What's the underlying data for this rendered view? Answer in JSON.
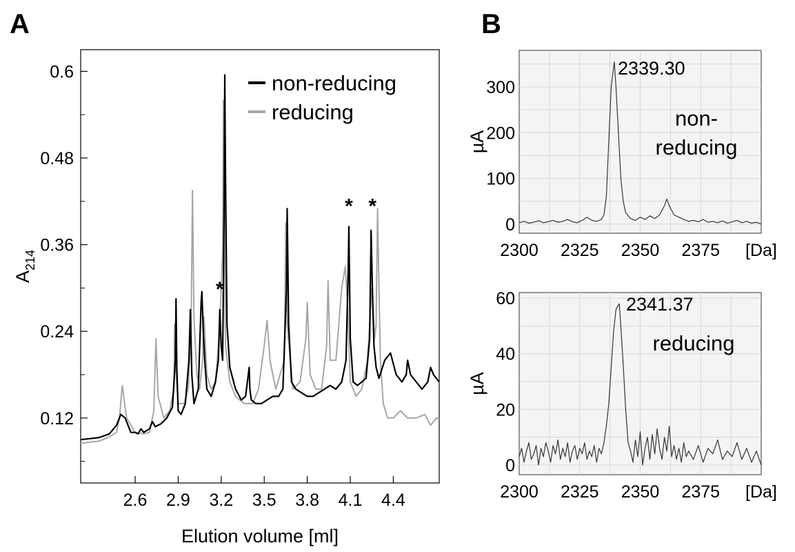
{
  "panels": {
    "A": {
      "letter": "A"
    },
    "B": {
      "letter": "B"
    }
  },
  "chart_data": [
    {
      "id": "chromatogram",
      "type": "line",
      "title": "",
      "xlabel": "Elution volume [ml]",
      "ylabel_main": "A",
      "ylabel_sub": "214",
      "xlim": [
        2.22,
        4.72
      ],
      "ylim": [
        0.03,
        0.63
      ],
      "xticks": [
        2.6,
        2.9,
        3.2,
        3.5,
        3.8,
        4.1,
        4.4
      ],
      "xtick_labels": [
        "2.6",
        "2.9",
        "3.2",
        "3.5",
        "3.8",
        "4.1",
        "4.4"
      ],
      "yticks": [
        0.12,
        0.24,
        0.36,
        0.48,
        0.6
      ],
      "ytick_labels": [
        "0.12",
        "0.24",
        "0.36",
        "0.48",
        "0.6"
      ],
      "grid": false,
      "legend_position": "top-right",
      "series": [
        {
          "name": "non-reducing",
          "color": "#000000",
          "x": [
            2.22,
            2.35,
            2.42,
            2.47,
            2.5,
            2.53,
            2.57,
            2.6,
            2.62,
            2.64,
            2.66,
            2.7,
            2.72,
            2.74,
            2.78,
            2.82,
            2.86,
            2.88,
            2.885,
            2.89,
            2.9,
            2.92,
            2.95,
            2.975,
            2.985,
            2.995,
            3.01,
            3.04,
            3.06,
            3.065,
            3.075,
            3.085,
            3.1,
            3.13,
            3.16,
            3.18,
            3.19,
            3.2,
            3.21,
            3.22,
            3.225,
            3.23,
            3.24,
            3.26,
            3.3,
            3.34,
            3.37,
            3.395,
            3.4,
            3.41,
            3.44,
            3.48,
            3.52,
            3.56,
            3.6,
            3.63,
            3.655,
            3.66,
            3.67,
            3.69,
            3.72,
            3.76,
            3.8,
            3.84,
            3.88,
            3.92,
            3.96,
            4.0,
            4.04,
            4.07,
            4.085,
            4.09,
            4.1,
            4.12,
            4.15,
            4.18,
            4.21,
            4.235,
            4.245,
            4.255,
            4.265,
            4.28,
            4.3,
            4.34,
            4.38,
            4.42,
            4.46,
            4.49,
            4.5,
            4.52,
            4.56,
            4.6,
            4.64,
            4.66,
            4.68,
            4.72
          ],
          "y": [
            0.09,
            0.093,
            0.098,
            0.11,
            0.125,
            0.12,
            0.1,
            0.1,
            0.098,
            0.105,
            0.1,
            0.105,
            0.115,
            0.108,
            0.112,
            0.12,
            0.135,
            0.2,
            0.285,
            0.19,
            0.13,
            0.125,
            0.14,
            0.2,
            0.27,
            0.18,
            0.14,
            0.16,
            0.28,
            0.295,
            0.24,
            0.2,
            0.16,
            0.15,
            0.17,
            0.2,
            0.27,
            0.22,
            0.2,
            0.4,
            0.595,
            0.45,
            0.25,
            0.19,
            0.16,
            0.145,
            0.15,
            0.19,
            0.16,
            0.145,
            0.14,
            0.14,
            0.145,
            0.15,
            0.15,
            0.16,
            0.3,
            0.41,
            0.25,
            0.17,
            0.16,
            0.155,
            0.15,
            0.15,
            0.155,
            0.16,
            0.165,
            0.16,
            0.17,
            0.2,
            0.32,
            0.385,
            0.23,
            0.17,
            0.165,
            0.17,
            0.175,
            0.23,
            0.38,
            0.29,
            0.22,
            0.19,
            0.175,
            0.2,
            0.21,
            0.18,
            0.17,
            0.18,
            0.2,
            0.18,
            0.17,
            0.16,
            0.17,
            0.19,
            0.18,
            0.17
          ]
        },
        {
          "name": "reducing",
          "color": "#a6a6a6",
          "x": [
            2.22,
            2.35,
            2.42,
            2.47,
            2.49,
            2.51,
            2.54,
            2.6,
            2.66,
            2.7,
            2.73,
            2.745,
            2.76,
            2.8,
            2.84,
            2.87,
            2.875,
            2.88,
            2.9,
            2.94,
            2.97,
            2.99,
            3.0,
            3.01,
            3.03,
            3.05,
            3.07,
            3.08,
            3.1,
            3.13,
            3.16,
            3.18,
            3.19,
            3.2,
            3.21,
            3.215,
            3.22,
            3.23,
            3.26,
            3.3,
            3.36,
            3.42,
            3.46,
            3.5,
            3.52,
            3.54,
            3.58,
            3.64,
            3.65,
            3.66,
            3.7,
            3.75,
            3.79,
            3.8,
            3.82,
            3.86,
            3.9,
            3.935,
            3.945,
            3.96,
            4.0,
            4.04,
            4.065,
            4.08,
            4.1,
            4.14,
            4.18,
            4.22,
            4.25,
            4.27,
            4.28,
            4.29,
            4.3,
            4.31,
            4.33,
            4.36,
            4.4,
            4.45,
            4.5,
            4.56,
            4.62,
            4.66,
            4.7,
            4.72
          ],
          "y": [
            0.085,
            0.088,
            0.094,
            0.1,
            0.12,
            0.165,
            0.12,
            0.1,
            0.098,
            0.1,
            0.13,
            0.23,
            0.15,
            0.12,
            0.13,
            0.16,
            0.25,
            0.2,
            0.14,
            0.14,
            0.16,
            0.25,
            0.435,
            0.26,
            0.18,
            0.16,
            0.2,
            0.26,
            0.18,
            0.16,
            0.17,
            0.22,
            0.25,
            0.3,
            0.35,
            0.56,
            0.45,
            0.22,
            0.17,
            0.15,
            0.14,
            0.14,
            0.16,
            0.22,
            0.255,
            0.2,
            0.16,
            0.2,
            0.39,
            0.25,
            0.16,
            0.17,
            0.23,
            0.28,
            0.18,
            0.16,
            0.16,
            0.22,
            0.31,
            0.2,
            0.2,
            0.3,
            0.33,
            0.28,
            0.17,
            0.15,
            0.16,
            0.2,
            0.3,
            0.23,
            0.25,
            0.41,
            0.3,
            0.2,
            0.14,
            0.12,
            0.12,
            0.13,
            0.12,
            0.12,
            0.125,
            0.11,
            0.12,
            0.118
          ]
        }
      ],
      "annotations": [
        {
          "text": "*",
          "x": 3.19,
          "y": 0.285
        },
        {
          "text": "*",
          "x": 4.09,
          "y": 0.4
        },
        {
          "text": "*",
          "x": 4.255,
          "y": 0.4
        }
      ]
    },
    {
      "id": "ms-non-reducing",
      "type": "line",
      "title": "",
      "xlabel": "",
      "ylabel": "µA",
      "x_unit_label": "[Da]",
      "xlim": [
        2300,
        2400
      ],
      "ylim": [
        -20,
        380
      ],
      "xticks": [
        2300,
        2325,
        2350,
        2375
      ],
      "xtick_labels": [
        "2300",
        "2325",
        "2350",
        "2375"
      ],
      "yticks": [
        0,
        100,
        200,
        300
      ],
      "ytick_labels": [
        "0",
        "100",
        "200",
        "300"
      ],
      "grid": true,
      "label_lines": [
        "non-",
        "reducing"
      ],
      "peak_label": "2339.30",
      "series": [
        {
          "name": "",
          "color": "#333333",
          "x": [
            2300,
            2302,
            2304,
            2306,
            2308,
            2310,
            2312,
            2314,
            2316,
            2318,
            2320,
            2322,
            2324,
            2326,
            2328,
            2330,
            2332,
            2334,
            2335,
            2336,
            2337,
            2338,
            2339.3,
            2340,
            2341,
            2342,
            2343,
            2344,
            2346,
            2348,
            2350,
            2352,
            2354,
            2356,
            2358,
            2360,
            2361,
            2362,
            2364,
            2366,
            2368,
            2370,
            2372,
            2374,
            2376,
            2378,
            2380,
            2382,
            2384,
            2386,
            2388,
            2390,
            2392,
            2394,
            2396,
            2398,
            2400
          ],
          "y": [
            3,
            6,
            2,
            4,
            7,
            3,
            5,
            8,
            4,
            6,
            10,
            5,
            3,
            8,
            15,
            8,
            6,
            10,
            20,
            60,
            180,
            300,
            355,
            300,
            200,
            100,
            50,
            25,
            12,
            8,
            15,
            10,
            18,
            12,
            20,
            40,
            55,
            40,
            20,
            15,
            10,
            6,
            8,
            5,
            10,
            4,
            6,
            3,
            7,
            2,
            5,
            8,
            3,
            6,
            2,
            4,
            0
          ]
        }
      ]
    },
    {
      "id": "ms-reducing",
      "type": "line",
      "title": "",
      "xlabel": "",
      "ylabel": "µA",
      "x_unit_label": "[Da]",
      "xlim": [
        2300,
        2400
      ],
      "ylim": [
        -3.5,
        62
      ],
      "xticks": [
        2300,
        2325,
        2350,
        2375
      ],
      "xtick_labels": [
        "2300",
        "2325",
        "2350",
        "2375"
      ],
      "yticks": [
        0,
        20,
        40,
        60
      ],
      "ytick_labels": [
        "0",
        "20",
        "40",
        "60"
      ],
      "grid": true,
      "label_lines": [
        "reducing"
      ],
      "peak_label": "2341.37",
      "series": [
        {
          "name": "",
          "color": "#333333",
          "x": [
            2300,
            2301,
            2302,
            2303,
            2304,
            2305,
            2306,
            2307,
            2308,
            2309,
            2310,
            2311,
            2312,
            2313,
            2314,
            2315,
            2316,
            2317,
            2318,
            2319,
            2320,
            2321,
            2322,
            2323,
            2324,
            2325,
            2326,
            2327,
            2328,
            2329,
            2330,
            2331,
            2332,
            2333,
            2334,
            2335,
            2336,
            2337,
            2338,
            2339,
            2340,
            2341.37,
            2342,
            2343,
            2344,
            2345,
            2346,
            2347,
            2348,
            2349,
            2350,
            2351,
            2352,
            2353,
            2354,
            2355,
            2356,
            2357,
            2358,
            2359,
            2360,
            2361,
            2362,
            2363,
            2364,
            2365,
            2366,
            2367,
            2368,
            2369,
            2370,
            2372,
            2374,
            2376,
            2378,
            2380,
            2382,
            2384,
            2386,
            2388,
            2390,
            2392,
            2394,
            2396,
            2398,
            2400
          ],
          "y": [
            3,
            6,
            1,
            5,
            8,
            2,
            4,
            7,
            0,
            6,
            3,
            8,
            5,
            1,
            7,
            4,
            9,
            2,
            6,
            3,
            8,
            1,
            5,
            7,
            2,
            6,
            4,
            8,
            2,
            5,
            3,
            7,
            1,
            6,
            4,
            8,
            14,
            22,
            35,
            48,
            56,
            58,
            50,
            36,
            20,
            8,
            5,
            1,
            9,
            3,
            12,
            0,
            6,
            10,
            2,
            11,
            4,
            13,
            6,
            2,
            10,
            5,
            14,
            3,
            7,
            2,
            6,
            1,
            8,
            3,
            5,
            2,
            7,
            1,
            6,
            4,
            9,
            2,
            5,
            3,
            8,
            2,
            6,
            1,
            5,
            0
          ]
        }
      ]
    }
  ]
}
